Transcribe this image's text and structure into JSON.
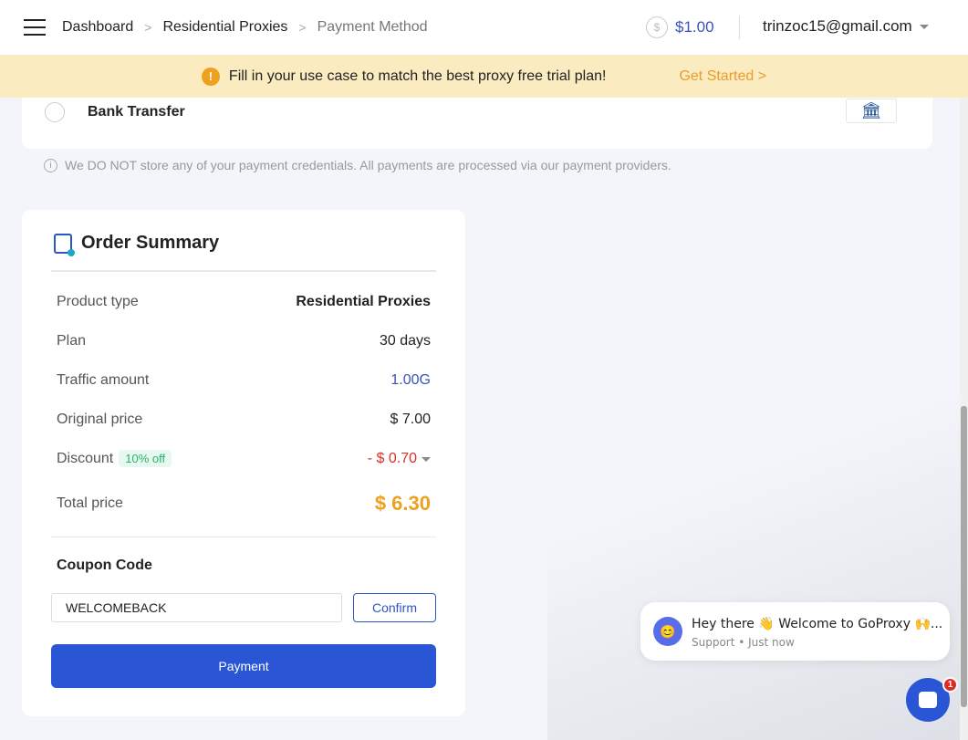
{
  "header": {
    "breadcrumb": [
      "Dashboard",
      "Residential Proxies",
      "Payment Method"
    ],
    "balance": "$1.00",
    "user_email": "trinzoc15@gmail.com"
  },
  "banner": {
    "message": "Fill in your use case to match the best proxy free trial plan!",
    "cta": "Get Started >",
    "warn_glyph": "!"
  },
  "payment_method": {
    "label": "Bank Transfer",
    "selected": false,
    "icon": "bank-icon"
  },
  "security_note": "We DO NOT store any of your payment credentials. All payments are processed via our payment providers.",
  "order": {
    "title": "Order Summary",
    "rows": [
      {
        "label": "Product type",
        "value": "Residential Proxies"
      },
      {
        "label": "Plan",
        "value": "30 days"
      },
      {
        "label": "Traffic amount",
        "value": "1.00G"
      },
      {
        "label": "Original price",
        "value": "$ 7.00"
      }
    ],
    "discount": {
      "label": "Discount",
      "tag": "10% off",
      "value": "- $ 0.70"
    },
    "total": {
      "label": "Total price",
      "value": "$ 6.30"
    },
    "coupon": {
      "label": "Coupon Code",
      "value": "WELCOMEBACK",
      "confirm": "Confirm"
    },
    "pay_button": "Payment"
  },
  "chat": {
    "message": "Hey there 👋 Welcome to GoProxy 🙌...",
    "sub": "Support • Just now",
    "badge": "1"
  },
  "colors": {
    "accent": "#2a56d6",
    "banner": "#faecc0",
    "total": "#f0a020",
    "discount": "#d9302b"
  }
}
